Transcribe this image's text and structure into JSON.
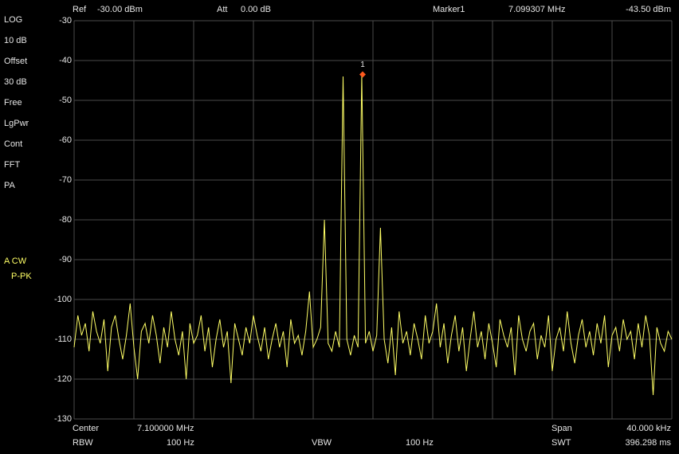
{
  "header": {
    "ref_label": "Ref",
    "ref_value": "-30.00 dBm",
    "att_label": "Att",
    "att_value": "0.00 dB",
    "marker_label": "Marker1",
    "marker_freq": "7.099307 MHz",
    "marker_level": "-43.50 dBm"
  },
  "sidebar": [
    "LOG",
    "10 dB",
    "Offset",
    "30 dB",
    "Free",
    "LgPwr",
    "Cont",
    "FFT",
    "PA"
  ],
  "trace_info": [
    "A CW",
    "P-PK"
  ],
  "footer": {
    "center_label": "Center",
    "center_value": "7.100000 MHz",
    "span_label": "Span",
    "span_value": "40.000 kHz",
    "rbw_label": "RBW",
    "rbw_value": "100 Hz",
    "vbw_label": "VBW",
    "vbw_value": "100 Hz",
    "swt_label": "SWT",
    "swt_value": "396.298 ms"
  },
  "chart_data": {
    "type": "line",
    "x": [
      7.08,
      7.08025,
      7.0805,
      7.08075,
      7.081,
      7.08125,
      7.0815,
      7.08175,
      7.082,
      7.08225,
      7.0825,
      7.08275,
      7.083,
      7.08325,
      7.0835,
      7.08375,
      7.084,
      7.08425,
      7.0845,
      7.08475,
      7.085,
      7.08525,
      7.0855,
      7.08575,
      7.086,
      7.08625,
      7.0865,
      7.08675,
      7.087,
      7.08725,
      7.0875,
      7.08775,
      7.088,
      7.08825,
      7.0885,
      7.08875,
      7.089,
      7.08925,
      7.0895,
      7.08975,
      7.09,
      7.09025,
      7.0905,
      7.09075,
      7.091,
      7.09125,
      7.0915,
      7.09175,
      7.092,
      7.09225,
      7.0925,
      7.09275,
      7.093,
      7.09325,
      7.0935,
      7.09375,
      7.094,
      7.09425,
      7.0945,
      7.09475,
      7.095,
      7.09525,
      7.0955,
      7.09575,
      7.096,
      7.09625,
      7.0965,
      7.09675,
      7.097,
      7.09725,
      7.0975,
      7.09775,
      7.098,
      7.09825,
      7.0985,
      7.09875,
      7.099,
      7.09925,
      7.0995,
      7.09975,
      7.1,
      7.10025,
      7.1005,
      7.10075,
      7.101,
      7.10125,
      7.1015,
      7.10175,
      7.102,
      7.10225,
      7.1025,
      7.10275,
      7.103,
      7.10325,
      7.1035,
      7.10375,
      7.104,
      7.10425,
      7.1045,
      7.10475,
      7.105,
      7.10525,
      7.1055,
      7.10575,
      7.106,
      7.10625,
      7.1065,
      7.10675,
      7.107,
      7.10725,
      7.1075,
      7.10775,
      7.108,
      7.10825,
      7.1085,
      7.10875,
      7.109,
      7.10925,
      7.1095,
      7.10975,
      7.11,
      7.11025,
      7.1105,
      7.11075,
      7.111,
      7.11125,
      7.1115,
      7.11175,
      7.112,
      7.11225,
      7.1125,
      7.11275,
      7.113,
      7.11325,
      7.1135,
      7.11375,
      7.114,
      7.11425,
      7.1145,
      7.11475,
      7.115,
      7.11525,
      7.1155,
      7.11575,
      7.116,
      7.11625,
      7.1165,
      7.11675,
      7.117,
      7.11725,
      7.1175,
      7.11775,
      7.118,
      7.11825,
      7.1185,
      7.11875,
      7.119,
      7.11925,
      7.1195,
      7.11975,
      7.12
    ],
    "series": [
      {
        "color": "#ffff66",
        "values": [
          -112,
          -104,
          -109,
          -106,
          -113,
          -103,
          -108,
          -111,
          -105,
          -118,
          -107,
          -104,
          -110,
          -115,
          -109,
          -101,
          -112,
          -120,
          -108,
          -106,
          -111,
          -104,
          -109,
          -116,
          -107,
          -112,
          -103,
          -110,
          -114,
          -108,
          -120,
          -106,
          -111,
          -109,
          -104,
          -113,
          -107,
          -117,
          -110,
          -105,
          -112,
          -108,
          -121,
          -106,
          -110,
          -114,
          -107,
          -111,
          -104,
          -109,
          -113,
          -107,
          -115,
          -110,
          -106,
          -112,
          -108,
          -117,
          -105,
          -111,
          -109,
          -114,
          -108,
          -98,
          -112,
          -110,
          -107,
          -80,
          -111,
          -113,
          -108,
          -112,
          -44,
          -110,
          -114,
          -109,
          -112,
          -43.5,
          -111,
          -108,
          -113,
          -109,
          -82,
          -110,
          -116,
          -107,
          -119,
          -103,
          -111,
          -108,
          -114,
          -106,
          -110,
          -115,
          -104,
          -111,
          -108,
          -101,
          -112,
          -106,
          -116,
          -109,
          -104,
          -113,
          -107,
          -118,
          -110,
          -103,
          -112,
          -108,
          -115,
          -106,
          -111,
          -117,
          -105,
          -109,
          -112,
          -107,
          -119,
          -104,
          -110,
          -113,
          -108,
          -106,
          -115,
          -109,
          -112,
          -104,
          -118,
          -110,
          -107,
          -113,
          -103,
          -111,
          -116,
          -109,
          -105,
          -112,
          -108,
          -114,
          -106,
          -111,
          -104,
          -117,
          -109,
          -107,
          -113,
          -105,
          -110,
          -108,
          -115,
          -106,
          -112,
          -104,
          -109,
          -124,
          -107,
          -111,
          -113,
          -108,
          -110
        ]
      }
    ],
    "xlim": [
      7.08,
      7.12
    ],
    "xticks": [
      7.08,
      7.084,
      7.088,
      7.092,
      7.096,
      7.1,
      7.104,
      7.108,
      7.112,
      7.116,
      7.12
    ],
    "ylim": [
      -130,
      -30
    ],
    "yticks": [
      -130,
      -120,
      -110,
      -100,
      -90,
      -80,
      -70,
      -60,
      -50,
      -40,
      -30
    ],
    "grid": true,
    "marker": {
      "label": "1",
      "x": 7.099307,
      "y": -43.5,
      "color": "#ff5a1e"
    }
  }
}
